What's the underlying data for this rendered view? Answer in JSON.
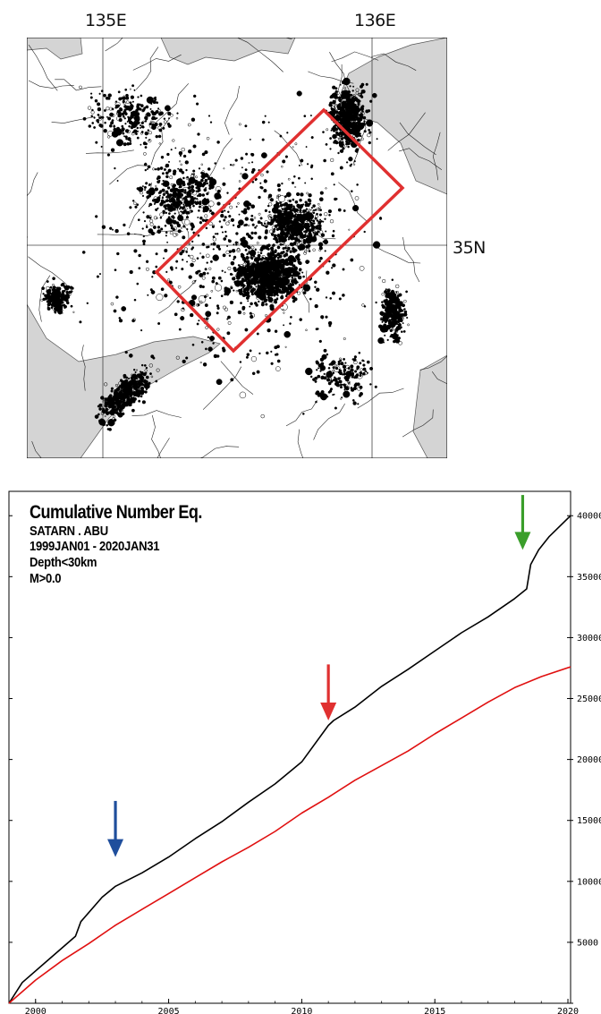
{
  "map": {
    "lon_labels": [
      "135E",
      "136E"
    ],
    "lat_label": "35N",
    "colors": {
      "land": "#ffffff",
      "sea": "#d4d4d4",
      "events": "#000000",
      "region_box": "#e03030"
    }
  },
  "chart_data": {
    "type": "line",
    "title": "Cumulative Number Eq.",
    "subtitle_lines": [
      "SATARN . ABU",
      "1999JAN01 - 2020JAN31",
      "Depth<30km",
      "M>0.0"
    ],
    "xlim": [
      1999.0,
      2020.1
    ],
    "ylim": [
      0,
      42000
    ],
    "x_ticks": [
      2000,
      2005,
      2010,
      2015,
      2020
    ],
    "y_ticks": [
      5000,
      10000,
      15000,
      20000,
      25000,
      30000,
      35000,
      40000
    ],
    "y_ticks_unlabeled": [
      0,
      5000,
      10000,
      15000,
      20000,
      25000,
      30000,
      35000,
      40000
    ],
    "y_axis_side": "right",
    "series": [
      {
        "color": "#000000",
        "x": [
          1999.0,
          1999.5,
          2000.5,
          2001.5,
          2001.7,
          2002.5,
          2003.0,
          2004.0,
          2005.0,
          2006.0,
          2007.0,
          2008.0,
          2009.0,
          2010.0,
          2011.0,
          2011.2,
          2012.0,
          2013.0,
          2014.0,
          2015.0,
          2016.0,
          2017.0,
          2018.0,
          2018.45,
          2018.6,
          2018.9,
          2019.3,
          2020.1
        ],
        "y": [
          0,
          1700,
          3600,
          5500,
          6700,
          8700,
          9600,
          10700,
          12000,
          13500,
          14900,
          16500,
          18000,
          19800,
          22800,
          23200,
          24300,
          26000,
          27400,
          28900,
          30400,
          31700,
          33200,
          34000,
          36000,
          37200,
          38300,
          40000
        ]
      },
      {
        "color": "#e01010",
        "x": [
          1999.0,
          2000.0,
          2001.0,
          2002.0,
          2003.0,
          2004.0,
          2005.0,
          2006.0,
          2007.0,
          2008.0,
          2009.0,
          2010.0,
          2011.0,
          2012.0,
          2013.0,
          2014.0,
          2015.0,
          2016.0,
          2017.0,
          2018.0,
          2019.0,
          2020.1
        ],
        "y": [
          0,
          1900,
          3500,
          4900,
          6400,
          7700,
          9000,
          10300,
          11600,
          12800,
          14100,
          15600,
          16900,
          18300,
          19500,
          20700,
          22100,
          23400,
          24700,
          25900,
          26800,
          27600
        ]
      }
    ],
    "arrows": [
      {
        "color": "#1f4e9c",
        "x": 2003.0,
        "y_tip": 12000,
        "y_tail": 16600
      },
      {
        "color": "#e03030",
        "x": 2011.0,
        "y_tip": 23200,
        "y_tail": 27800
      },
      {
        "color": "#3a9e2a",
        "x": 2018.3,
        "y_tip": 37200,
        "y_tail": 41700
      }
    ]
  }
}
